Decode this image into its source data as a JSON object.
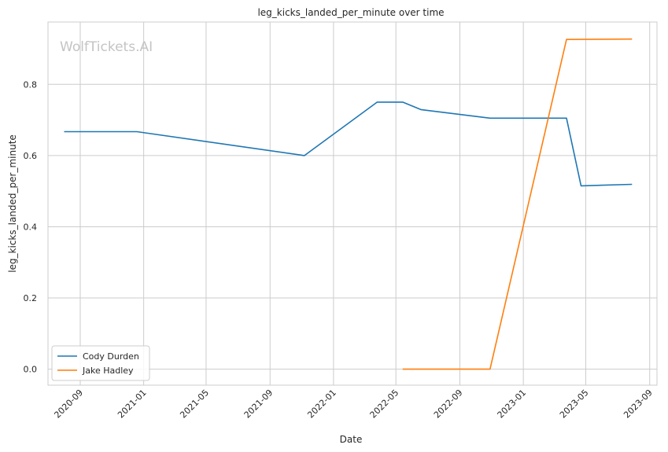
{
  "watermark": "WolfTickets.AI",
  "chart_data": {
    "type": "line",
    "title": "leg_kicks_landed_per_minute over time",
    "xlabel": "Date",
    "ylabel": "leg_kicks_landed_per_minute",
    "x_axis_type": "date",
    "xlim": [
      "2020-07-01",
      "2023-09-15"
    ],
    "ylim": [
      -0.045,
      0.975
    ],
    "x_ticks": [
      "2020-09",
      "2021-01",
      "2021-05",
      "2021-09",
      "2022-01",
      "2022-05",
      "2022-09",
      "2023-01",
      "2023-05",
      "2023-09"
    ],
    "y_ticks": [
      "0.0",
      "0.2",
      "0.4",
      "0.6",
      "0.8"
    ],
    "grid": true,
    "legend_position": "lower-left",
    "series": [
      {
        "name": "Cody Durden",
        "color": "#1f77b4",
        "x": [
          "2020-08-01",
          "2020-12-19",
          "2021-11-06",
          "2022-03-26",
          "2022-05-14",
          "2022-06-18",
          "2022-10-29",
          "2023-03-25",
          "2023-04-22",
          "2023-07-29"
        ],
        "y": [
          0.667,
          0.667,
          0.6,
          0.75,
          0.75,
          0.729,
          0.705,
          0.705,
          0.515,
          0.519
        ]
      },
      {
        "name": "Jake Hadley",
        "color": "#ff7f0e",
        "x": [
          "2022-05-14",
          "2022-10-29",
          "2023-03-25",
          "2023-07-29"
        ],
        "y": [
          0.0,
          0.0,
          0.926,
          0.927
        ]
      }
    ]
  }
}
